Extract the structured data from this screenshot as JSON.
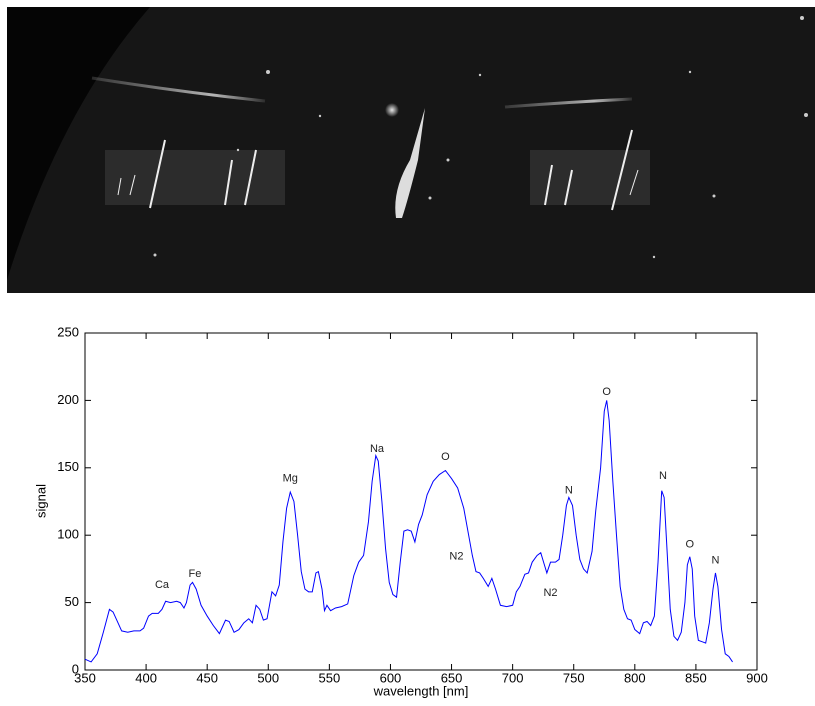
{
  "chart_data": {
    "type": "line",
    "xlabel": "wavelength [nm]",
    "ylabel": "signal",
    "color": "#0000ff",
    "xlim": [
      350,
      900
    ],
    "ylim": [
      0,
      250
    ],
    "xticks": [
      350,
      400,
      450,
      500,
      550,
      600,
      650,
      700,
      750,
      800,
      850,
      900
    ],
    "yticks": [
      0,
      50,
      100,
      150,
      200,
      250
    ],
    "x": [
      350,
      355,
      360,
      365,
      370,
      373,
      377,
      380,
      385,
      390,
      395,
      398,
      402,
      405,
      410,
      413,
      416,
      420,
      425,
      428,
      431,
      433,
      436,
      438,
      441,
      445,
      450,
      455,
      460,
      465,
      468,
      472,
      476,
      480,
      484,
      487,
      490,
      493,
      496,
      499,
      503,
      506,
      509,
      512,
      515,
      518,
      521,
      524,
      527,
      530,
      533,
      536,
      539,
      541,
      544,
      546,
      548,
      551,
      555,
      560,
      565,
      570,
      574,
      578,
      582,
      585,
      588,
      590,
      593,
      596,
      599,
      602,
      605,
      608,
      611,
      614,
      617,
      620,
      623,
      626,
      630,
      635,
      640,
      645,
      650,
      655,
      660,
      664,
      667,
      670,
      673,
      676,
      680,
      683,
      686,
      690,
      695,
      700,
      703,
      706,
      710,
      713,
      716,
      720,
      723,
      726,
      728,
      731,
      735,
      738,
      741,
      744,
      746,
      749,
      752,
      755,
      758,
      761,
      765,
      768,
      772,
      775,
      777,
      779,
      782,
      785,
      788,
      791,
      794,
      797,
      800,
      804,
      807,
      810,
      813,
      816,
      819,
      822,
      824,
      826,
      829,
      832,
      835,
      838,
      841,
      843,
      845,
      847,
      849,
      852,
      855,
      858,
      861,
      864,
      866,
      868,
      871,
      874,
      877,
      880
    ],
    "values": [
      8,
      6,
      12,
      28,
      45,
      43,
      35,
      29,
      28,
      29,
      29,
      31,
      40,
      42,
      42,
      45,
      51,
      50,
      51,
      50,
      46,
      50,
      63,
      65,
      60,
      48,
      40,
      33,
      27,
      37,
      36,
      28,
      30,
      35,
      38,
      35,
      48,
      45,
      37,
      38,
      58,
      55,
      63,
      95,
      120,
      132,
      125,
      100,
      73,
      60,
      58,
      58,
      72,
      73,
      60,
      44,
      48,
      44,
      46,
      47,
      49,
      70,
      80,
      85,
      110,
      140,
      159,
      155,
      125,
      90,
      65,
      56,
      54,
      80,
      103,
      104,
      103,
      95,
      108,
      115,
      130,
      140,
      145,
      148,
      142,
      135,
      120,
      100,
      85,
      73,
      72,
      68,
      62,
      68,
      60,
      48,
      47,
      48,
      58,
      62,
      71,
      72,
      80,
      85,
      87,
      78,
      72,
      80,
      80,
      82,
      100,
      122,
      128,
      122,
      100,
      82,
      75,
      72,
      88,
      118,
      150,
      192,
      200,
      185,
      140,
      100,
      62,
      45,
      38,
      37,
      30,
      27,
      35,
      36,
      33,
      40,
      80,
      133,
      128,
      95,
      45,
      25,
      22,
      28,
      50,
      78,
      84,
      75,
      40,
      22,
      21,
      20,
      35,
      60,
      72,
      62,
      30,
      12,
      10,
      6
    ],
    "annotations": [
      "Ca",
      "Fe",
      "Mg",
      "Na",
      "O",
      "N2",
      "N",
      "N2",
      "O",
      "N",
      "O",
      "N"
    ],
    "grid": false
  }
}
